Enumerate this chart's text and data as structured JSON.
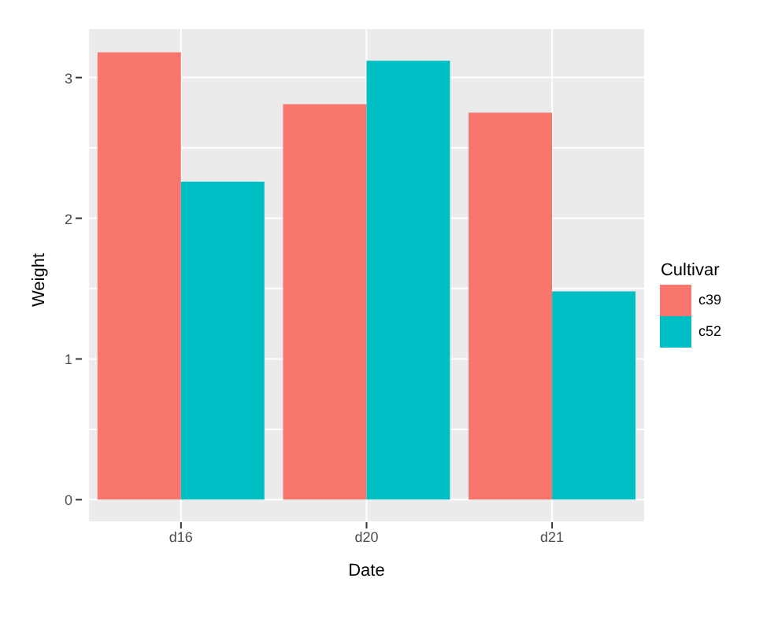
{
  "chart_data": {
    "type": "bar",
    "xlabel": "Date",
    "ylabel": "Weight",
    "legend_title": "Cultivar",
    "categories": [
      "d16",
      "d20",
      "d21"
    ],
    "series": [
      {
        "name": "c39",
        "color": "#f8766d",
        "values": [
          3.18,
          2.81,
          2.75
        ]
      },
      {
        "name": "c52",
        "color": "#00bfc4",
        "values": [
          2.26,
          3.12,
          1.48
        ]
      }
    ],
    "ylim": [
      -0.16,
      3.35
    ],
    "yticks": [
      0,
      {
        "value": 0.5,
        "label": null
      },
      1,
      {
        "value": 1.5,
        "label": null
      },
      2,
      {
        "value": 2.5,
        "label": null
      },
      3
    ],
    "grid": true,
    "legend": "right"
  }
}
